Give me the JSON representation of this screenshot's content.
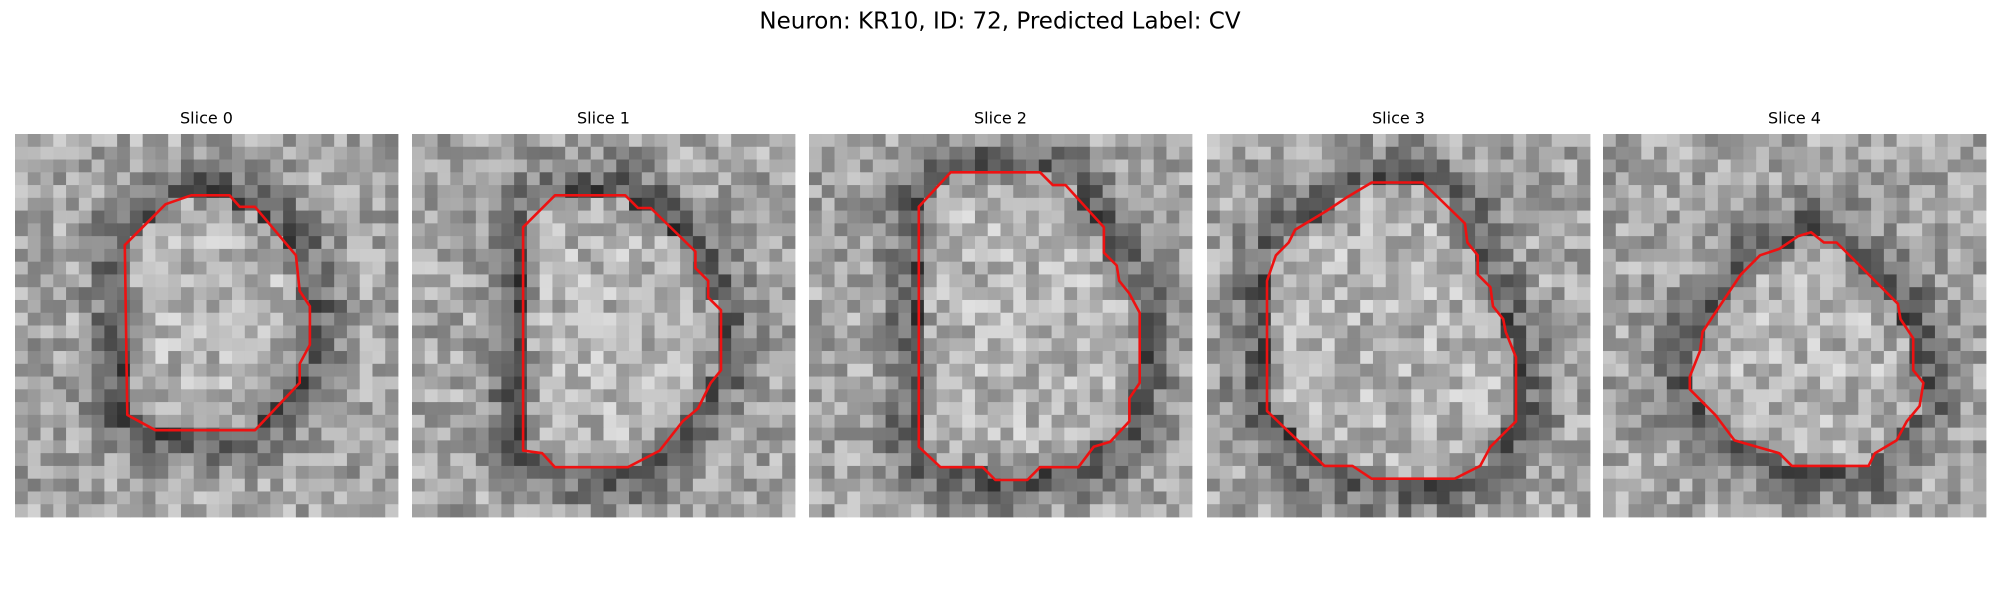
{
  "title": "Neuron: KR10, ID: 72, Predicted Label: CV",
  "slices": [
    {
      "title": "Slice 0"
    },
    {
      "title": "Slice 1"
    },
    {
      "title": "Slice 2"
    },
    {
      "title": "Slice 3"
    },
    {
      "title": "Slice 4"
    }
  ]
}
